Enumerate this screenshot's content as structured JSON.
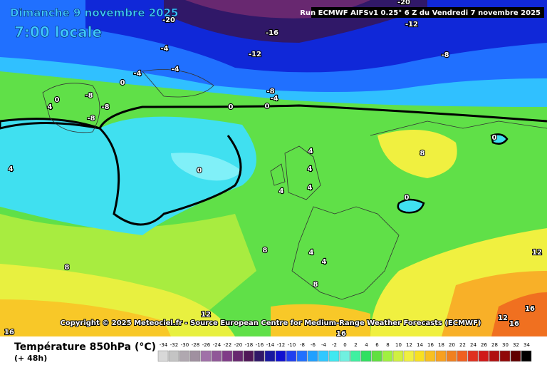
{
  "header": {
    "date": "Dimanche 9 novembre 2025",
    "time": "7:00 locale",
    "run": "Run ECMWF AIFSv1 0.25° 6 Z du Vendredi 7 novembre 2025"
  },
  "copyright": "Copyright © 2025 Meteociel.fr - Source European Centre for Medium-Range Weather Forecasts (ECMWF)",
  "contour_labels": [
    -20,
    -20,
    -12,
    -16,
    -12,
    -8,
    -4,
    -4,
    -4,
    0,
    -8,
    -8,
    -8,
    0,
    4,
    -8,
    -4,
    0,
    0,
    0,
    8,
    4,
    4,
    0,
    4,
    4,
    4,
    0,
    8,
    4,
    4,
    8,
    12,
    8,
    12,
    12,
    16,
    16,
    16,
    16
  ],
  "legend": {
    "title": "Température 850hPa (°C)",
    "lead": "(+ 48h)",
    "ticks": [
      -34,
      -32,
      -30,
      -28,
      -26,
      -24,
      -22,
      -20,
      -18,
      -16,
      -14,
      -12,
      -10,
      -8,
      -6,
      -4,
      -2,
      0,
      2,
      4,
      6,
      8,
      10,
      12,
      14,
      16,
      18,
      20,
      22,
      24,
      26,
      28,
      30,
      32,
      34
    ],
    "colors": [
      "#d8d8d8",
      "#c4c4c4",
      "#b0a8b0",
      "#a090a0",
      "#a070a8",
      "#905898",
      "#803c88",
      "#682870",
      "#501858",
      "#301868",
      "#1818a0",
      "#1010d0",
      "#2040f0",
      "#2070ff",
      "#20a0ff",
      "#30c8ff",
      "#40e8f0",
      "#70f0e0",
      "#40f0a0",
      "#30e060",
      "#60e040",
      "#a0f040",
      "#d0f040",
      "#f0f040",
      "#f8e020",
      "#f8c020",
      "#f8a020",
      "#f08020",
      "#f06020",
      "#e03020",
      "#d01818",
      "#b01010",
      "#900808",
      "#600000",
      "#000000"
    ]
  }
}
